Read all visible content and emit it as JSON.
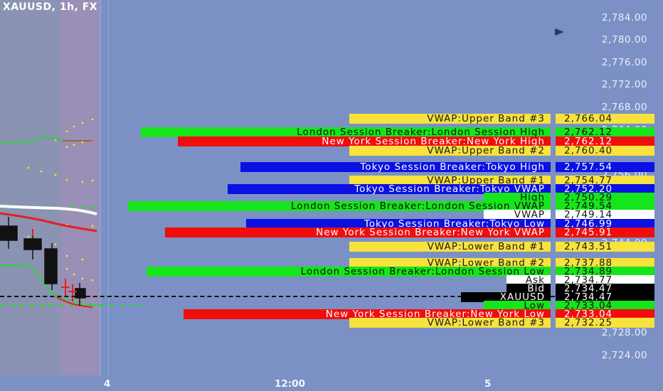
{
  "header": {
    "symbol": "XAUUSD, 1h, FX"
  },
  "price_axis": {
    "ticks": [
      "2,784.00",
      "2,780.00",
      "2,776.00",
      "2,772.00",
      "2,768.00",
      "2,728.00",
      "2,724.00"
    ],
    "partial_ticks": [
      "2,764.00",
      "2,756.00",
      "2,744.00"
    ]
  },
  "time_axis": {
    "labels": [
      "4",
      "12:00",
      "5"
    ]
  },
  "labels": [
    {
      "text": "VWAP:Upper Band #3",
      "value": "2,766.04",
      "color": "yellow"
    },
    {
      "text": "London Session Breaker:London Session High",
      "value": "2,762.12",
      "color": "green"
    },
    {
      "text": "New York Session Breaker:New York High",
      "value": "2,762.12",
      "color": "red"
    },
    {
      "text": "VWAP:Upper Band #2",
      "value": "2,760.40",
      "color": "yellow"
    },
    {
      "text": "Tokyo Session Breaker:Tokyo High",
      "value": "2,757.54",
      "color": "blue"
    },
    {
      "text": "VWAP:Upper Band #1",
      "value": "2,754.77",
      "color": "yellow"
    },
    {
      "text": "Tokyo Session Breaker:Tokyo VWAP",
      "value": "2,752.20",
      "color": "blue"
    },
    {
      "text": "High",
      "value": "2,750.29",
      "color": "green"
    },
    {
      "text": "London Session Breaker:London Session VWAP",
      "value": "2,749.54",
      "color": "green"
    },
    {
      "text": "VWAP",
      "value": "2,749.14",
      "color": "white"
    },
    {
      "text": "Tokyo Session Breaker:Tokyo Low",
      "value": "2,746.99",
      "color": "blue"
    },
    {
      "text": "New York Session Breaker:New York VWAP",
      "value": "2,745.91",
      "color": "red"
    },
    {
      "text": "VWAP:Lower Band #1",
      "value": "2,743.51",
      "color": "yellow"
    },
    {
      "text": "VWAP:Lower Band #2",
      "value": "2,737.88",
      "color": "yellow"
    },
    {
      "text": "London Session Breaker:London Session Low",
      "value": "2,734.89",
      "color": "green"
    },
    {
      "text": "Ask",
      "value": "2,734.77",
      "color": "white"
    },
    {
      "text": "Bid",
      "value": "2,734.47",
      "color": "black"
    },
    {
      "text": "XAUUSD",
      "value": "2,734.47",
      "color": "black"
    },
    {
      "text": "Low",
      "value": "2,733.04",
      "color": "green"
    },
    {
      "text": "New York Session Breaker:New York Low",
      "value": "2,733.04",
      "color": "red"
    },
    {
      "text": "VWAP:Lower Band #3",
      "value": "2,732.25",
      "color": "yellow"
    }
  ],
  "colors": {
    "background": "#7b91c5",
    "yellow": "#f7e23e",
    "green": "#16e51b",
    "red": "#f20d0d",
    "blue": "#0b10e4",
    "white": "#ffffff",
    "black": "#000000"
  }
}
